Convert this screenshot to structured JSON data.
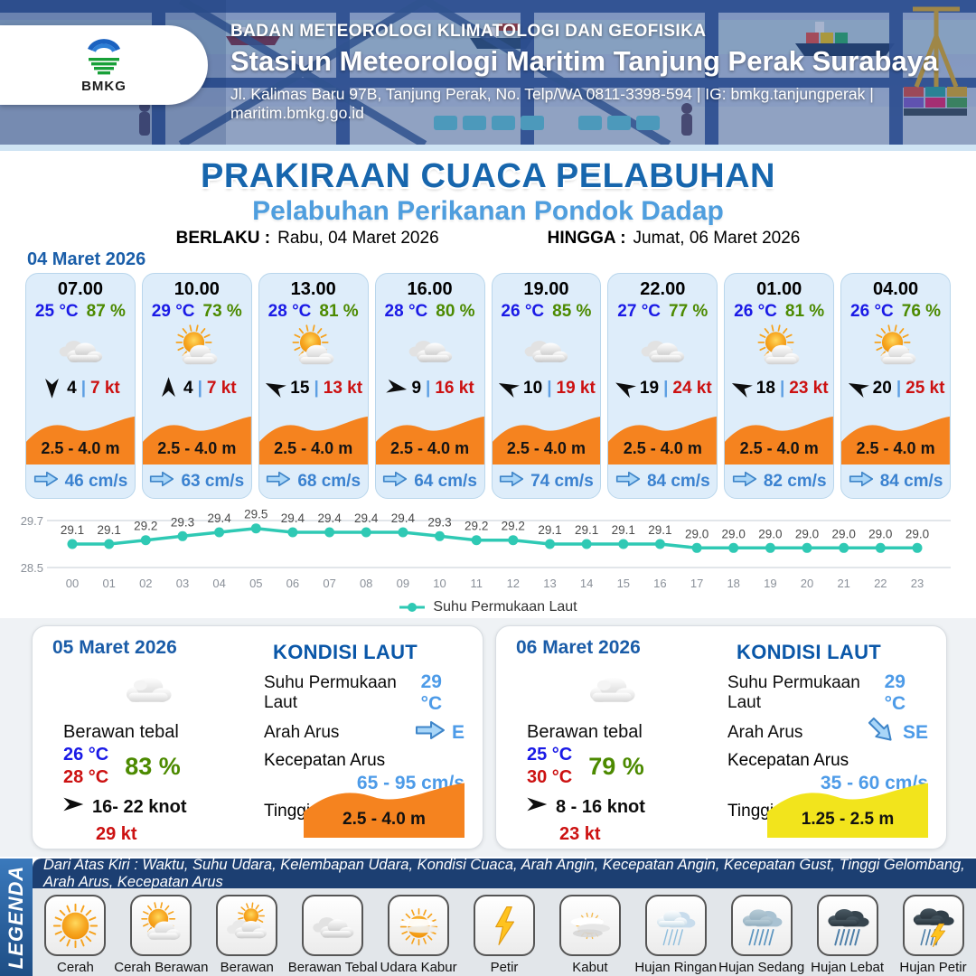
{
  "header": {
    "logo_label": "BMKG",
    "agency": "BADAN METEOROLOGI KLIMATOLOGI DAN GEOFISIKA",
    "station": "Stasiun Meteorologi Maritim Tanjung Perak Surabaya",
    "address": "Jl. Kalimas Baru 97B, Tanjung Perak, No. Telp/WA 0811-3398-594 | IG: bmkg.tanjungperak | maritim.bmkg.go.id"
  },
  "title": "PRAKIRAAN CUACA PELABUHAN",
  "subtitle": "Pelabuhan Perikanan Pondok Dadap",
  "validity": {
    "berlaku_label": "BERLAKU :",
    "berlaku_value": "Rabu, 04 Maret 2026",
    "hingga_label": "HINGGA :",
    "hingga_value": "Jumat, 06 Maret 2026"
  },
  "forecast_date": "04 Maret 2026",
  "hourly": [
    {
      "time": "07.00",
      "temp": "25 °C",
      "rh": "87 %",
      "icon": "berawan-tebal",
      "wind_dir_deg": 90,
      "wind": "4",
      "gust": "7 kt",
      "wave": "2.5 - 4.0 m",
      "current": "46 cm/s"
    },
    {
      "time": "10.00",
      "temp": "29 °C",
      "rh": "73 %",
      "icon": "cerah-berawan",
      "wind_dir_deg": 270,
      "wind": "4",
      "gust": "7 kt",
      "wave": "2.5 - 4.0 m",
      "current": "63 cm/s"
    },
    {
      "time": "13.00",
      "temp": "28 °C",
      "rh": "81 %",
      "icon": "cerah-berawan",
      "wind_dir_deg": 205,
      "wind": "15",
      "gust": "13 kt",
      "wave": "2.5 - 4.0 m",
      "current": "68 cm/s"
    },
    {
      "time": "16.00",
      "temp": "28 °C",
      "rh": "80 %",
      "icon": "berawan-tebal",
      "wind_dir_deg": 10,
      "wind": "9",
      "gust": "16 kt",
      "wave": "2.5 - 4.0 m",
      "current": "64 cm/s"
    },
    {
      "time": "19.00",
      "temp": "26 °C",
      "rh": "85 %",
      "icon": "berawan-tebal",
      "wind_dir_deg": 205,
      "wind": "10",
      "gust": "19 kt",
      "wave": "2.5 - 4.0 m",
      "current": "74 cm/s"
    },
    {
      "time": "22.00",
      "temp": "27 °C",
      "rh": "77 %",
      "icon": "berawan-tebal",
      "wind_dir_deg": 208,
      "wind": "19",
      "gust": "24 kt",
      "wave": "2.5 - 4.0 m",
      "current": "84 cm/s"
    },
    {
      "time": "01.00",
      "temp": "26 °C",
      "rh": "81 %",
      "icon": "cerah-berawan",
      "wind_dir_deg": 205,
      "wind": "18",
      "gust": "23 kt",
      "wave": "2.5 - 4.0 m",
      "current": "82 cm/s"
    },
    {
      "time": "04.00",
      "temp": "26 °C",
      "rh": "76 %",
      "icon": "cerah-berawan",
      "wind_dir_deg": 205,
      "wind": "20",
      "gust": "25 kt",
      "wave": "2.5 - 4.0 m",
      "current": "84 cm/s"
    }
  ],
  "chart_data": {
    "type": "line",
    "x": [
      "00",
      "01",
      "02",
      "03",
      "04",
      "05",
      "06",
      "07",
      "08",
      "09",
      "10",
      "11",
      "12",
      "13",
      "14",
      "15",
      "16",
      "17",
      "18",
      "19",
      "20",
      "21",
      "22",
      "23"
    ],
    "series": [
      {
        "name": "Suhu Permukaan Laut",
        "values": [
          29.1,
          29.1,
          29.2,
          29.3,
          29.4,
          29.5,
          29.4,
          29.4,
          29.4,
          29.4,
          29.3,
          29.2,
          29.2,
          29.1,
          29.1,
          29.1,
          29.1,
          29.0,
          29.0,
          29.0,
          29.0,
          29.0,
          29.0,
          29.0
        ]
      }
    ],
    "ylim": [
      28.5,
      29.7
    ],
    "yticks": [
      "28.5",
      "29.7"
    ],
    "line_color": "#2FC9B4",
    "legend_position": "bottom",
    "grid": true
  },
  "daily": [
    {
      "date": "05 Maret 2026",
      "icon": "awan",
      "condition": "Berawan tebal",
      "temp_min": "26 °C",
      "temp_max": "28 °C",
      "rh": "83 %",
      "wind": "16- 22 knot",
      "gust": "29 kt",
      "sea": {
        "title": "KONDISI LAUT",
        "sst_label": "Suhu Permukaan Laut",
        "sst": "29 °C",
        "dir_label": "Arah Arus",
        "dir": "E",
        "dir_deg": 0,
        "speed_label": "Kecepatan Arus",
        "speed": "65 - 95 cm/s",
        "wave_label": "Tinggi Gelombang",
        "wave": "2.5 - 4.0 m",
        "wave_color": "#F5831F"
      }
    },
    {
      "date": "06 Maret 2026",
      "icon": "awan",
      "condition": "Berawan tebal",
      "temp_min": "25 °C",
      "temp_max": "30 °C",
      "rh": "79 %",
      "wind": "8 - 16 knot",
      "gust": "23 kt",
      "sea": {
        "title": "KONDISI LAUT",
        "sst_label": "Suhu Permukaan Laut",
        "sst": "29 °C",
        "dir_label": "Arah Arus",
        "dir": "SE",
        "dir_deg": 45,
        "speed_label": "Kecepatan Arus",
        "speed": "35 - 60 cm/s",
        "wave_label": "Tinggi Gelombang",
        "wave": "1.25 - 2.5 m",
        "wave_color": "#F2E41C"
      }
    }
  ],
  "legend": {
    "band_label": "LEGENDA",
    "description": "Dari Atas Kiri : Waktu, Suhu Udara, Kelembapan Udara, Kondisi Cuaca, Arah Angin, Kecepatan Angin, Kecepatan Gust, Tinggi Gelombang, Arah Arus, Kecepatan Arus",
    "items": [
      {
        "icon": "cerah",
        "label": "Cerah"
      },
      {
        "icon": "cerah-berawan",
        "label": "Cerah Berawan"
      },
      {
        "icon": "berawan",
        "label": "Berawan"
      },
      {
        "icon": "berawan-tebal",
        "label": "Berawan Tebal"
      },
      {
        "icon": "udara-kabur",
        "label": "Udara Kabur"
      },
      {
        "icon": "petir",
        "label": "Petir"
      },
      {
        "icon": "kabut",
        "label": "Kabut"
      },
      {
        "icon": "hujan-ringan",
        "label": "Hujan Ringan"
      },
      {
        "icon": "hujan-sedang",
        "label": "Hujan Sedang"
      },
      {
        "icon": "hujan-lebat",
        "label": "Hujan Lebat"
      },
      {
        "icon": "hujan-petir",
        "label": "Hujan Petir"
      }
    ]
  },
  "colors": {
    "title_blue": "#1766AD",
    "subtitle_blue": "#4F9EDE",
    "temp_blue": "#1A1AE6",
    "humidity_green": "#4C8A00",
    "gust_red": "#CC1111",
    "wave_orange": "#F5831F",
    "wave_yellow": "#F2E41C",
    "current_blue": "#3B82D0",
    "chart_teal": "#2FC9B4",
    "card_bg": "#DEEDFA",
    "navy_strip": "#1C3F72"
  }
}
